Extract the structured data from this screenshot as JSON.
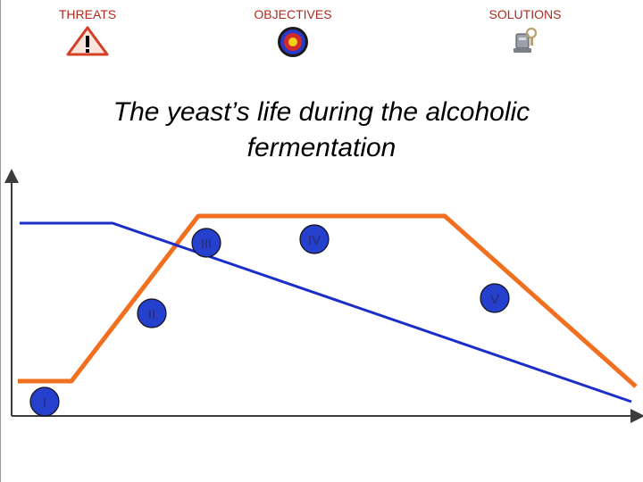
{
  "nav": {
    "threats": {
      "label": "THREATS",
      "icon": "warning-triangle-icon"
    },
    "objectives": {
      "label": "OBJECTIVES",
      "icon": "target-icon"
    },
    "solutions": {
      "label": "SOLUTIONS",
      "icon": "tools-icon"
    }
  },
  "title_line1": "The yeast’s life during the alcoholic",
  "title_line2": "fermentation",
  "phases": [
    "I",
    "II",
    "III",
    "IV",
    "V"
  ],
  "colors": {
    "nav_text": "#b02a1e",
    "orange_curve": "#f07020",
    "blue_curve": "#1c2ec8",
    "phase_fill": "#2540cc",
    "phase_text": "#2a2a6e"
  }
}
